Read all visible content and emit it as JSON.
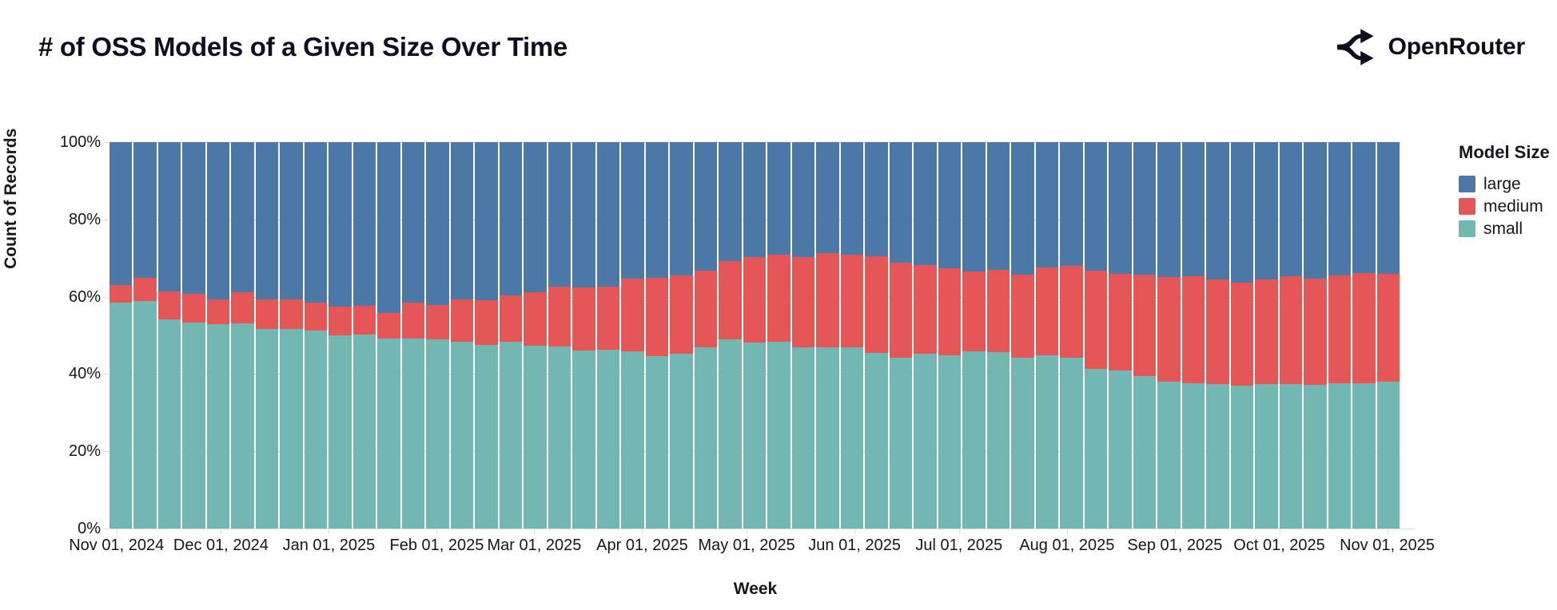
{
  "header": {
    "title": "# of OSS Models of a Given Size Over Time",
    "brand": "OpenRouter"
  },
  "legend": {
    "title": "Model Size"
  },
  "chart_data": {
    "type": "bar",
    "stack": "normalize",
    "title": "# of OSS Models of a Given Size Over Time",
    "xlabel": "Week",
    "ylabel": "Count of Records",
    "ylim": [
      0,
      100
    ],
    "grid": true,
    "legend_position": "right",
    "y_tick_labels": [
      "0%",
      "20%",
      "40%",
      "60%",
      "80%",
      "100%"
    ],
    "y_tick_values": [
      0,
      20,
      40,
      60,
      80,
      100
    ],
    "x_tick_labels": [
      "Nov 01, 2024",
      "Dec 01, 2024",
      "Jan 01, 2025",
      "Feb 01, 2025",
      "Mar 01, 2025",
      "Apr 01, 2025",
      "May 01, 2025",
      "Jun 01, 2025",
      "Jul 01, 2025",
      "Aug 01, 2025",
      "Sep 01, 2025",
      "Oct 01, 2025",
      "Nov 01, 2025"
    ],
    "weeks": [
      "2024-10-27",
      "2024-11-03",
      "2024-11-10",
      "2024-11-17",
      "2024-11-24",
      "2024-12-01",
      "2024-12-08",
      "2024-12-15",
      "2024-12-22",
      "2024-12-29",
      "2025-01-05",
      "2025-01-12",
      "2025-01-19",
      "2025-01-26",
      "2025-02-02",
      "2025-02-09",
      "2025-02-16",
      "2025-02-23",
      "2025-03-02",
      "2025-03-09",
      "2025-03-16",
      "2025-03-23",
      "2025-03-30",
      "2025-04-06",
      "2025-04-13",
      "2025-04-20",
      "2025-04-27",
      "2025-05-04",
      "2025-05-11",
      "2025-05-18",
      "2025-05-25",
      "2025-06-01",
      "2025-06-08",
      "2025-06-15",
      "2025-06-22",
      "2025-06-29",
      "2025-07-06",
      "2025-07-13",
      "2025-07-20",
      "2025-07-27",
      "2025-08-03",
      "2025-08-10",
      "2025-08-17",
      "2025-08-24",
      "2025-08-31",
      "2025-09-07",
      "2025-09-14",
      "2025-09-21",
      "2025-09-28",
      "2025-10-05",
      "2025-10-12",
      "2025-10-19",
      "2025-10-26"
    ],
    "series": [
      {
        "name": "small",
        "color": "#72b7b2",
        "values": [
          58.5,
          58.8,
          54.1,
          53.4,
          52.8,
          53.2,
          51.7,
          51.7,
          51.2,
          50.1,
          50.2,
          49.2,
          49.2,
          49.0,
          48.3,
          47.6,
          48.4,
          47.4,
          47.2,
          46.0,
          46.2,
          45.9,
          44.7,
          45.2,
          46.8,
          49.0,
          48.1,
          48.3,
          46.9,
          47.0,
          46.9,
          45.5,
          44.3,
          45.3,
          44.8,
          45.9,
          45.7,
          44.2,
          44.8,
          44.3,
          41.4,
          40.9,
          39.5,
          38.1,
          37.7,
          37.3,
          37.0,
          37.3,
          37.3,
          37.1,
          37.7,
          37.6,
          38.1
        ]
      },
      {
        "name": "medium",
        "color": "#e45756",
        "values": [
          4.6,
          6.0,
          7.2,
          7.3,
          6.5,
          8.0,
          7.6,
          7.6,
          7.3,
          7.3,
          7.4,
          6.6,
          9.2,
          8.9,
          11.1,
          11.4,
          11.9,
          13.8,
          15.5,
          16.5,
          16.5,
          18.8,
          20.2,
          20.2,
          19.9,
          20.3,
          22.2,
          22.5,
          23.4,
          24.2,
          23.9,
          25.0,
          24.6,
          22.9,
          22.6,
          20.6,
          21.2,
          21.4,
          22.8,
          23.7,
          25.3,
          25.1,
          26.3,
          27.0,
          27.5,
          27.2,
          26.6,
          27.2,
          27.9,
          27.5,
          27.8,
          28.6,
          27.9
        ]
      },
      {
        "name": "large",
        "color": "#4c78a8",
        "values": [
          36.9,
          35.2,
          38.7,
          39.3,
          40.7,
          38.8,
          40.7,
          40.7,
          41.5,
          42.6,
          42.4,
          44.2,
          41.6,
          42.1,
          40.6,
          41.0,
          39.7,
          38.8,
          37.3,
          37.5,
          37.3,
          35.3,
          35.1,
          34.6,
          33.3,
          30.7,
          29.7,
          29.2,
          29.7,
          28.8,
          29.2,
          29.5,
          31.1,
          31.8,
          32.6,
          33.5,
          33.1,
          34.4,
          32.4,
          32.0,
          33.3,
          34.0,
          34.2,
          34.9,
          34.8,
          35.5,
          36.4,
          35.5,
          34.8,
          35.4,
          34.5,
          33.8,
          34.0
        ]
      }
    ]
  }
}
